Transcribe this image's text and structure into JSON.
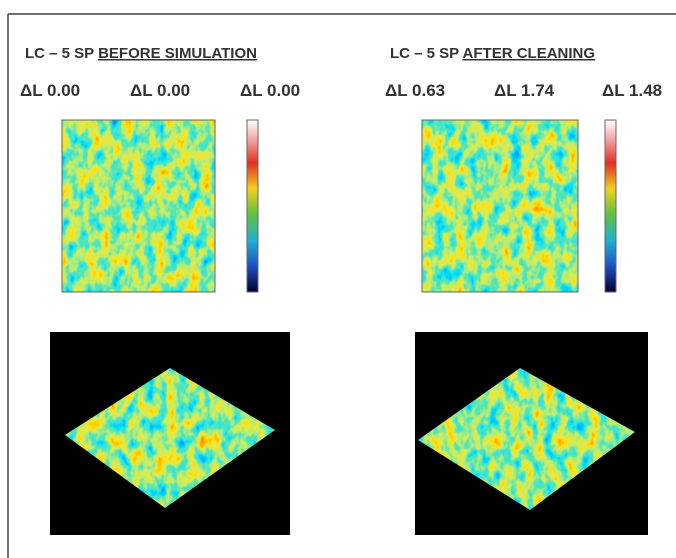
{
  "panels": [
    {
      "title_prefix": "LC – 5 SP",
      "title_underlined": "BEFORE SIMULATION",
      "delta_l": [
        "ΔL 0.00",
        "ΔL 0.00",
        "ΔL 0.00"
      ]
    },
    {
      "title_prefix": "LC – 5 SP",
      "title_underlined": "AFTER CLEANING",
      "delta_l": [
        "ΔL 0.63",
        "ΔL 1.74",
        "ΔL 1.48"
      ]
    }
  ]
}
